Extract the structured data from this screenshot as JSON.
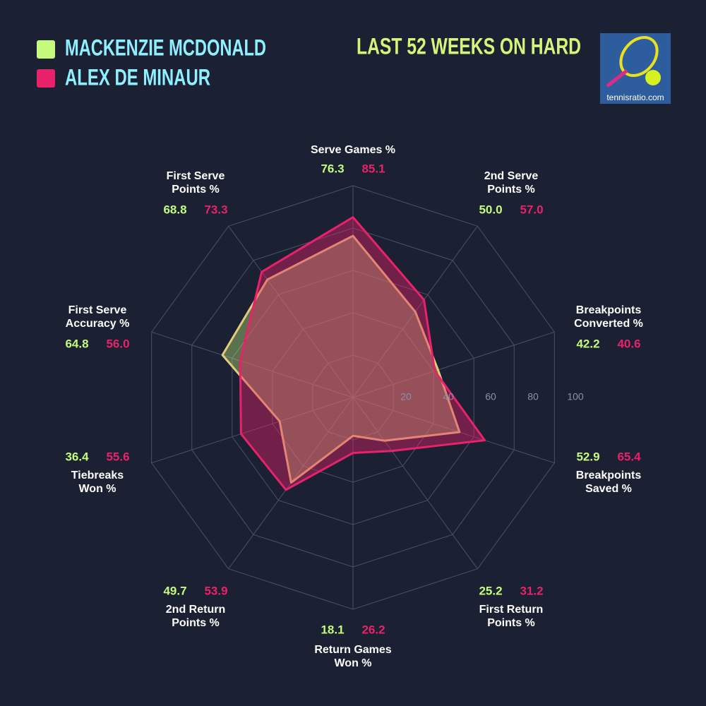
{
  "chart_data": {
    "type": "radar",
    "title": "LAST 52 WEEKS ON HARD",
    "categories": [
      "Serve Games %",
      "2nd Serve\nPoints %",
      "Breakpoints\nConverted %",
      "Breakpoints\nSaved %",
      "First Return\nPoints %",
      "Return Games\nWon %",
      "2nd Return\nPoints %",
      "Tiebreaks\nWon %",
      "First Serve\nAccuracy %",
      "First Serve\nPoints %"
    ],
    "series": [
      {
        "name": "MACKENZIE MCDONALD",
        "color": "#c5fb7c",
        "values": [
          76.3,
          50,
          42.2,
          52.9,
          25.2,
          18.1,
          49.7,
          36.4,
          64.8,
          68.8
        ],
        "value_labels": [
          "76.3",
          "50.0",
          "42.2",
          "52.9",
          "25.2",
          "18.1",
          "49.7",
          "36.4",
          "64.8",
          "68.8"
        ]
      },
      {
        "name": "ALEX DE MINAUR",
        "color": "#e8226a",
        "values": [
          85.1,
          57,
          40.6,
          65.4,
          31.2,
          26.2,
          53.9,
          55.6,
          56,
          73.3
        ],
        "value_labels": [
          "85.1",
          "57.0",
          "40.6",
          "65.4",
          "31.2",
          "26.2",
          "53.9",
          "55.6",
          "56.0",
          "73.3"
        ]
      }
    ],
    "rlim": [
      0,
      100
    ],
    "rticks": [
      20,
      40,
      60,
      80,
      100
    ]
  },
  "logo": {
    "text": "tennisratio.com"
  }
}
